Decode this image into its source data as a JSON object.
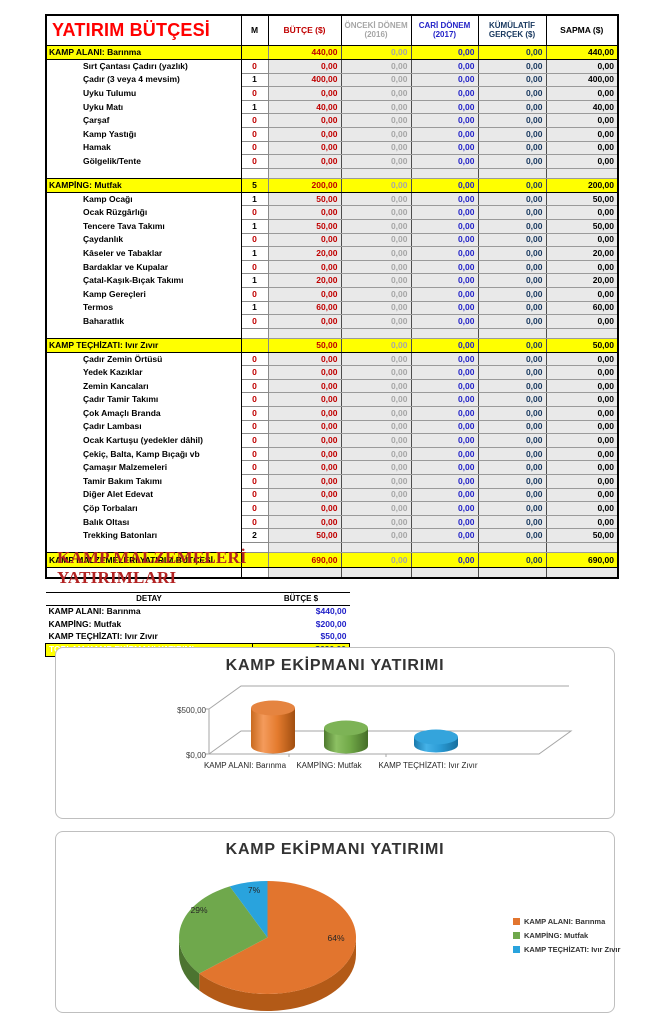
{
  "colors": {
    "accent_red": "#C00000",
    "title_red": "#FF0000",
    "highlight_yellow": "#FFFF00",
    "cari_blue": "#2323C8",
    "kumulatif_navy": "#17375E",
    "onceki_gray": "#A6A6A6",
    "cell_gray": "#E9E9E9",
    "series_orange": "#E2752E",
    "series_green": "#6FA84C",
    "series_blue": "#29A3DD"
  },
  "table": {
    "title": "YATIRIM BÜTÇESİ",
    "col_m": "M",
    "col_butce": "BÜTÇE ($)",
    "col_onceki_1": "ÖNCEKİ DÖNEM",
    "col_onceki_2": "(2016)",
    "col_cari_1": "CARİ DÖNEM",
    "col_cari_2": "(2017)",
    "col_kumulatif_1": "KÜMÜLATİF",
    "col_kumulatif_2": "GERÇEK ($)",
    "col_sapma": "SAPMA ($)",
    "sections": [
      {
        "header": {
          "name": "KAMP ALANI: Barınma",
          "m": "",
          "butce": "440,00",
          "onceki": "0,00",
          "cari": "0,00",
          "kumulatif": "0,00",
          "sapma": "440,00"
        },
        "items": [
          {
            "name": "Sırt Çantası Çadırı (yazlık)",
            "m": "0",
            "butce": "0,00",
            "onceki": "0,00",
            "cari": "0,00",
            "kumulatif": "0,00",
            "sapma": "0,00"
          },
          {
            "name": "Çadır (3 veya 4 mevsim)",
            "m": "1",
            "butce": "400,00",
            "onceki": "0,00",
            "cari": "0,00",
            "kumulatif": "0,00",
            "sapma": "400,00"
          },
          {
            "name": "Uyku Tulumu",
            "m": "0",
            "butce": "0,00",
            "onceki": "0,00",
            "cari": "0,00",
            "kumulatif": "0,00",
            "sapma": "0,00"
          },
          {
            "name": "Uyku Matı",
            "m": "1",
            "butce": "40,00",
            "onceki": "0,00",
            "cari": "0,00",
            "kumulatif": "0,00",
            "sapma": "40,00"
          },
          {
            "name": "Çarşaf",
            "m": "0",
            "butce": "0,00",
            "onceki": "0,00",
            "cari": "0,00",
            "kumulatif": "0,00",
            "sapma": "0,00"
          },
          {
            "name": "Kamp Yastığı",
            "m": "0",
            "butce": "0,00",
            "onceki": "0,00",
            "cari": "0,00",
            "kumulatif": "0,00",
            "sapma": "0,00"
          },
          {
            "name": "Hamak",
            "m": "0",
            "butce": "0,00",
            "onceki": "0,00",
            "cari": "0,00",
            "kumulatif": "0,00",
            "sapma": "0,00"
          },
          {
            "name": "Gölgelik/Tente",
            "m": "0",
            "butce": "0,00",
            "onceki": "0,00",
            "cari": "0,00",
            "kumulatif": "0,00",
            "sapma": "0,00"
          }
        ]
      },
      {
        "header": {
          "name": "KAMPİNG: Mutfak",
          "m": "5",
          "butce": "200,00",
          "onceki": "0,00",
          "cari": "0,00",
          "kumulatif": "0,00",
          "sapma": "200,00"
        },
        "items": [
          {
            "name": "Kamp Ocağı",
            "m": "1",
            "butce": "50,00",
            "onceki": "0,00",
            "cari": "0,00",
            "kumulatif": "0,00",
            "sapma": "50,00"
          },
          {
            "name": "Ocak Rüzgârlığı",
            "m": "0",
            "butce": "0,00",
            "onceki": "0,00",
            "cari": "0,00",
            "kumulatif": "0,00",
            "sapma": "0,00"
          },
          {
            "name": "Tencere Tava Takımı",
            "m": "1",
            "butce": "50,00",
            "onceki": "0,00",
            "cari": "0,00",
            "kumulatif": "0,00",
            "sapma": "50,00"
          },
          {
            "name": "Çaydanlık",
            "m": "0",
            "butce": "0,00",
            "onceki": "0,00",
            "cari": "0,00",
            "kumulatif": "0,00",
            "sapma": "0,00"
          },
          {
            "name": "Kâseler ve Tabaklar",
            "m": "1",
            "butce": "20,00",
            "onceki": "0,00",
            "cari": "0,00",
            "kumulatif": "0,00",
            "sapma": "20,00"
          },
          {
            "name": "Bardaklar ve Kupalar",
            "m": "0",
            "butce": "0,00",
            "onceki": "0,00",
            "cari": "0,00",
            "kumulatif": "0,00",
            "sapma": "0,00"
          },
          {
            "name": "Çatal-Kaşık-Bıçak Takımı",
            "m": "1",
            "butce": "20,00",
            "onceki": "0,00",
            "cari": "0,00",
            "kumulatif": "0,00",
            "sapma": "20,00"
          },
          {
            "name": "Kamp Gereçleri",
            "m": "0",
            "butce": "0,00",
            "onceki": "0,00",
            "cari": "0,00",
            "kumulatif": "0,00",
            "sapma": "0,00"
          },
          {
            "name": "Termos",
            "m": "1",
            "butce": "60,00",
            "onceki": "0,00",
            "cari": "0,00",
            "kumulatif": "0,00",
            "sapma": "60,00"
          },
          {
            "name": "Baharatlık",
            "m": "0",
            "butce": "0,00",
            "onceki": "0,00",
            "cari": "0,00",
            "kumulatif": "0,00",
            "sapma": "0,00"
          }
        ]
      },
      {
        "header": {
          "name": "KAMP TEÇHİZATI: Ivır Zıvır",
          "m": "",
          "butce": "50,00",
          "onceki": "0,00",
          "cari": "0,00",
          "kumulatif": "0,00",
          "sapma": "50,00"
        },
        "items": [
          {
            "name": "Çadır Zemin Örtüsü",
            "m": "0",
            "butce": "0,00",
            "onceki": "0,00",
            "cari": "0,00",
            "kumulatif": "0,00",
            "sapma": "0,00"
          },
          {
            "name": "Yedek Kazıklar",
            "m": "0",
            "butce": "0,00",
            "onceki": "0,00",
            "cari": "0,00",
            "kumulatif": "0,00",
            "sapma": "0,00"
          },
          {
            "name": "Zemin Kancaları",
            "m": "0",
            "butce": "0,00",
            "onceki": "0,00",
            "cari": "0,00",
            "kumulatif": "0,00",
            "sapma": "0,00"
          },
          {
            "name": "Çadır Tamir Takımı",
            "m": "0",
            "butce": "0,00",
            "onceki": "0,00",
            "cari": "0,00",
            "kumulatif": "0,00",
            "sapma": "0,00"
          },
          {
            "name": "Çok Amaçlı Branda",
            "m": "0",
            "butce": "0,00",
            "onceki": "0,00",
            "cari": "0,00",
            "kumulatif": "0,00",
            "sapma": "0,00"
          },
          {
            "name": "Çadır Lambası",
            "m": "0",
            "butce": "0,00",
            "onceki": "0,00",
            "cari": "0,00",
            "kumulatif": "0,00",
            "sapma": "0,00"
          },
          {
            "name": "Ocak Kartuşu (yedekler dâhil)",
            "m": "0",
            "butce": "0,00",
            "onceki": "0,00",
            "cari": "0,00",
            "kumulatif": "0,00",
            "sapma": "0,00"
          },
          {
            "name": "Çekiç, Balta, Kamp Bıçağı vb",
            "m": "0",
            "butce": "0,00",
            "onceki": "0,00",
            "cari": "0,00",
            "kumulatif": "0,00",
            "sapma": "0,00"
          },
          {
            "name": "Çamaşır Malzemeleri",
            "m": "0",
            "butce": "0,00",
            "onceki": "0,00",
            "cari": "0,00",
            "kumulatif": "0,00",
            "sapma": "0,00"
          },
          {
            "name": "Tamir Bakım Takımı",
            "m": "0",
            "butce": "0,00",
            "onceki": "0,00",
            "cari": "0,00",
            "kumulatif": "0,00",
            "sapma": "0,00"
          },
          {
            "name": "Diğer Alet Edevat",
            "m": "0",
            "butce": "0,00",
            "onceki": "0,00",
            "cari": "0,00",
            "kumulatif": "0,00",
            "sapma": "0,00"
          },
          {
            "name": "Çöp Torbaları",
            "m": "0",
            "butce": "0,00",
            "onceki": "0,00",
            "cari": "0,00",
            "kumulatif": "0,00",
            "sapma": "0,00"
          },
          {
            "name": "Balık Oltası",
            "m": "0",
            "butce": "0,00",
            "onceki": "0,00",
            "cari": "0,00",
            "kumulatif": "0,00",
            "sapma": "0,00"
          },
          {
            "name": "Trekking Batonları",
            "m": "2",
            "butce": "50,00",
            "onceki": "0,00",
            "cari": "0,00",
            "kumulatif": "0,00",
            "sapma": "50,00"
          }
        ]
      }
    ],
    "total": {
      "name": "KAMP MALZEMELERİ YATIRIM BÜTÇESİ",
      "m": "",
      "butce": "690,00",
      "onceki": "0,00",
      "cari": "0,00",
      "kumulatif": "0,00",
      "sapma": "690,00"
    }
  },
  "summary": {
    "title": "KAMP MALZEMELERİ YATIRIMLARI",
    "col_detail": "DETAY",
    "col_budget": "BÜTÇE $",
    "rows": [
      {
        "name": "KAMP ALANI: Barınma",
        "value": "$440,00"
      },
      {
        "name": "KAMPİNG: Mutfak",
        "value": "$200,00"
      },
      {
        "name": "KAMP TEÇHİZATI: Ivır Zıvır",
        "value": "$50,00"
      }
    ],
    "total": {
      "name": "TOPLAM KAMP EKİPMANI YATIRIMI",
      "value": "$690,00"
    }
  },
  "bar_chart": {
    "title": "KAMP EKİPMANI YATIRIMI",
    "y_tick_top": "$500,00",
    "y_tick_bottom": "$0,00",
    "categories": [
      "KAMP ALANI: Barınma",
      "KAMPİNG: Mutfak",
      "KAMP TEÇHİZATI: Ivır Zıvır"
    ]
  },
  "pie_chart": {
    "title": "KAMP EKİPMANI YATIRIMI",
    "slices": [
      {
        "label": "KAMP ALANI: Barınma",
        "pct": "64%"
      },
      {
        "label": "KAMPİNG: Mutfak",
        "pct": "29%"
      },
      {
        "label": "KAMP TEÇHİZATI: Ivır Zıvır",
        "pct": "7%"
      }
    ]
  },
  "chart_data": [
    {
      "type": "bar",
      "title": "KAMP EKİPMANI YATIRIMI",
      "categories": [
        "KAMP ALANI: Barınma",
        "KAMPİNG: Mutfak",
        "KAMP TEÇHİZATI: Ivır Zıvır"
      ],
      "values": [
        440,
        200,
        50
      ],
      "xlabel": "",
      "ylabel": "",
      "ylim": [
        0,
        500
      ],
      "tick_labels": [
        "$0,00",
        "$500,00"
      ],
      "legend": false,
      "style": "3d-cylinder",
      "series_colors": [
        "#E2752E",
        "#6FA84C",
        "#29A3DD"
      ]
    },
    {
      "type": "pie",
      "title": "KAMP EKİPMANI YATIRIMI",
      "categories": [
        "KAMP ALANI: Barınma",
        "KAMPİNG: Mutfak",
        "KAMP TEÇHİZATI: Ivır Zıvır"
      ],
      "values": [
        64,
        29,
        7
      ],
      "amounts": [
        440,
        200,
        50
      ],
      "data_labels": [
        "64%",
        "29%",
        "7%"
      ],
      "legend_position": "right",
      "style": "3d-pie",
      "series_colors": [
        "#E2752E",
        "#6FA84C",
        "#29A3DD"
      ]
    }
  ]
}
